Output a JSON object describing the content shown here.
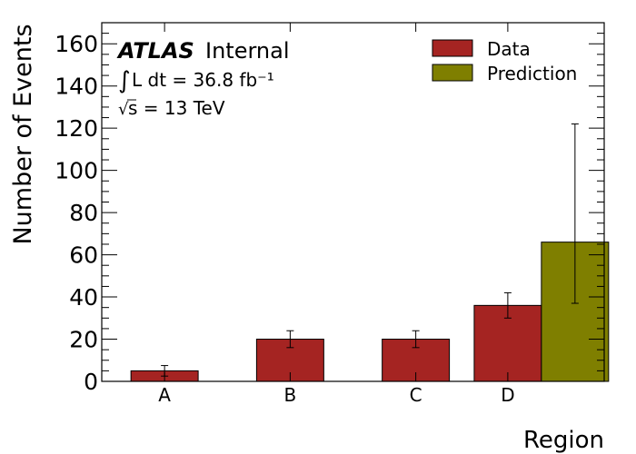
{
  "chart_data": {
    "type": "bar",
    "categories": [
      "A",
      "B",
      "C",
      "D"
    ],
    "series": [
      {
        "name": "Data",
        "color": "#a52422",
        "values": [
          5,
          20,
          20,
          36
        ],
        "err_low": [
          2.5,
          4,
          4,
          6
        ],
        "err_high": [
          2.5,
          4,
          4,
          6
        ]
      },
      {
        "name": "Prediction",
        "color": "#7f7f00",
        "values": [
          null,
          null,
          null,
          66
        ],
        "err_low": [
          null,
          null,
          null,
          29
        ],
        "err_high": [
          null,
          null,
          null,
          56
        ]
      }
    ],
    "xlabel": "Region",
    "ylabel": "Number of Events",
    "ylim": [
      0,
      170
    ],
    "yticks": [
      0,
      20,
      40,
      60,
      80,
      100,
      120,
      140,
      160
    ],
    "legend_position": "top-right",
    "grid": false
  },
  "annotations": {
    "experiment": "ATLAS",
    "status": "Internal",
    "lumi": "L dt = 36.8 fb⁻¹",
    "energy": "s = 13 TeV"
  }
}
